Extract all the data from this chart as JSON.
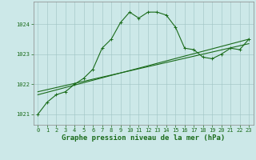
{
  "title": "Graphe pression niveau de la mer (hPa)",
  "background_color": "#cce8e8",
  "line_color": "#1a6b1a",
  "xlim": [
    -0.5,
    23.5
  ],
  "ylim": [
    1020.65,
    1024.75
  ],
  "yticks": [
    1021,
    1022,
    1023,
    1024
  ],
  "xticks": [
    0,
    1,
    2,
    3,
    4,
    5,
    6,
    7,
    8,
    9,
    10,
    11,
    12,
    13,
    14,
    15,
    16,
    17,
    18,
    19,
    20,
    21,
    22,
    23
  ],
  "series1_x": [
    0,
    1,
    2,
    3,
    4,
    5,
    6,
    7,
    8,
    9,
    10,
    11,
    12,
    13,
    14,
    15,
    16,
    17,
    18,
    19,
    20,
    21,
    22,
    23
  ],
  "series1_y": [
    1021.0,
    1021.4,
    1021.65,
    1021.75,
    1022.0,
    1022.2,
    1022.5,
    1023.2,
    1023.5,
    1024.05,
    1024.4,
    1024.2,
    1024.4,
    1024.4,
    1024.3,
    1023.9,
    1023.2,
    1023.15,
    1022.9,
    1022.85,
    1023.0,
    1023.2,
    1023.15,
    1023.5
  ],
  "series2_x": [
    0,
    23
  ],
  "series2_y": [
    1021.65,
    1023.5
  ],
  "series3_x": [
    0,
    23
  ],
  "series3_y": [
    1021.75,
    1023.35
  ],
  "fontsize_title": 6.5,
  "fontsize_ticks": 5.0,
  "marker": "+"
}
